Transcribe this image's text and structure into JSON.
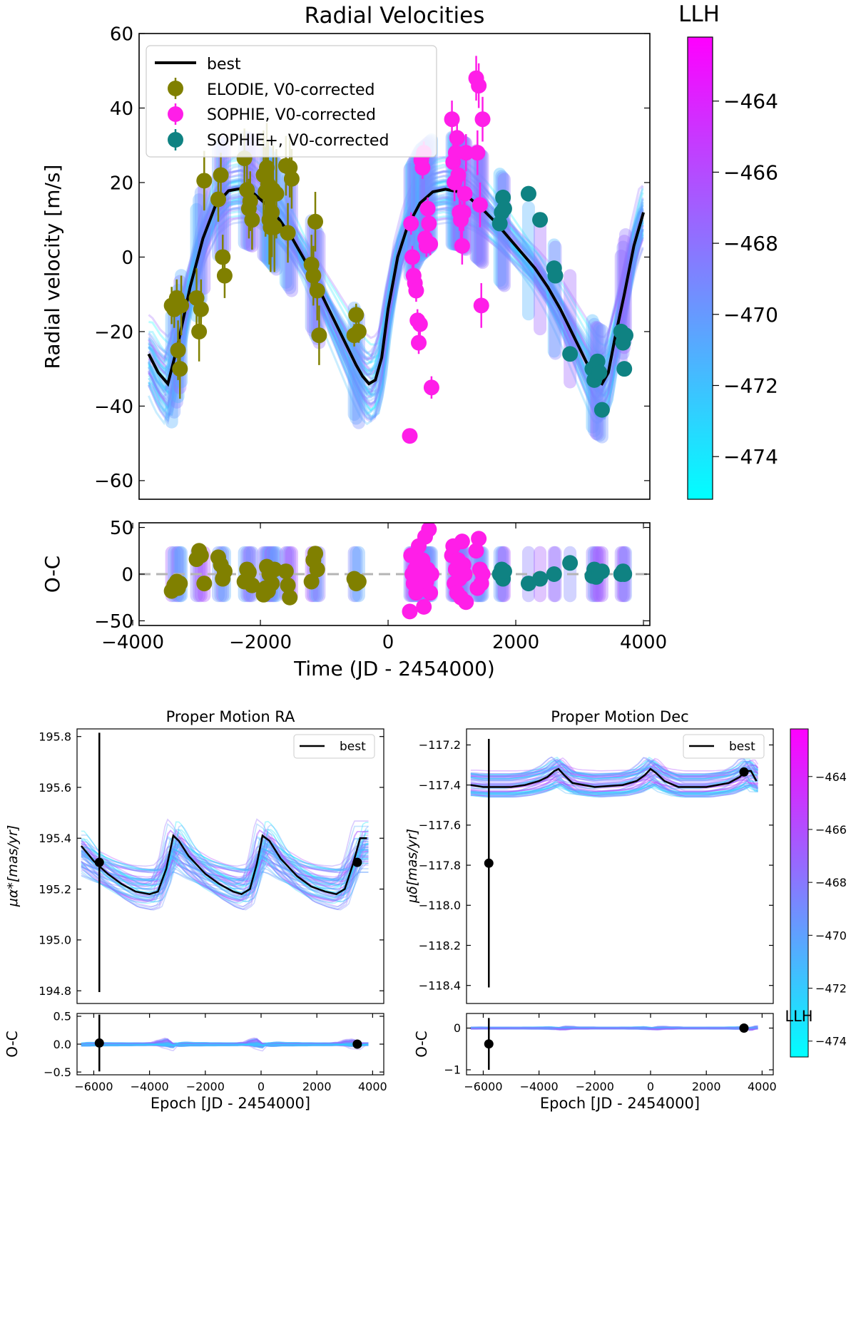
{
  "colors": {
    "elodie": "#808000",
    "sophie": "#ff1ee8",
    "sophie_plus": "#0f8282",
    "best": "#000000",
    "cmap_low": "#00ffff",
    "cmap_high": "#ff00ff",
    "zero_line": "#b4b4b4"
  },
  "chart_data": [
    {
      "id": "rv",
      "type": "scatter",
      "title": "Radial Velocities",
      "xlabel": "Time (JD - 2454000)",
      "ylabel": "Radial velocity [m/s]",
      "xlim": [
        -3900,
        4100
      ],
      "ylim": [
        -65,
        60
      ],
      "xticks": [
        "-4000",
        "-2000",
        "0",
        "2000",
        "4000"
      ],
      "xtick_values": [
        -4000,
        -2000,
        0,
        2000,
        4000
      ],
      "yticks": [
        "60",
        "40",
        "20",
        "0",
        "-20",
        "-40",
        "-60"
      ],
      "ytick_values": [
        60,
        40,
        20,
        0,
        -20,
        -40,
        -60
      ],
      "legend": [
        "best",
        "ELODIE, V0-corrected",
        "SOPHIE, V0-corrected",
        "SOPHIE+, V0-corrected"
      ],
      "best_fit": {
        "name": "best",
        "x": [
          -3750,
          -3600,
          -3450,
          -3300,
          -3100,
          -2900,
          -2700,
          -2500,
          -2300,
          -2100,
          -1900,
          -1700,
          -1500,
          -1300,
          -1100,
          -900,
          -700,
          -500,
          -400,
          -300,
          -200,
          -100,
          0,
          150,
          300,
          500,
          700,
          900,
          1100,
          1300,
          1500,
          1700,
          1900,
          2100,
          2300,
          2500,
          2700,
          2900,
          3100,
          3250,
          3350,
          3450,
          3550,
          3700,
          3850,
          4000
        ],
        "y": [
          -26,
          -31,
          -34,
          -24,
          -8,
          5,
          14,
          17.8,
          18.4,
          17,
          14,
          10,
          5,
          -1,
          -8,
          -15,
          -22,
          -29,
          -32,
          -34,
          -33,
          -27,
          -14,
          0,
          8,
          14.5,
          17.5,
          18.2,
          17.5,
          15.5,
          12.5,
          9,
          5,
          1,
          -3,
          -8,
          -14,
          -21,
          -28,
          -33,
          -34,
          -31,
          -22,
          -10,
          3,
          12
        ]
      },
      "series": [
        {
          "name": "ELODIE, V0-corrected",
          "x": [
            -3390,
            -3350,
            -3310,
            -3290,
            -3260,
            -3240,
            -3000,
            -2960,
            -2930,
            -2880,
            -2660,
            -2620,
            -2590,
            -2560,
            -2250,
            -2210,
            -2180,
            -2160,
            -2130,
            -1950,
            -1920,
            -1900,
            -1880,
            -1860,
            -1840,
            -1820,
            -1800,
            -1780,
            -1750,
            -1600,
            -1570,
            -1540,
            -1510,
            -1200,
            -1170,
            -1140,
            -1110,
            -1080,
            -530,
            -500,
            -460
          ],
          "y": [
            -13,
            -14,
            -11,
            -25,
            -30,
            -13,
            -11,
            -20,
            -14,
            20.5,
            15.5,
            22,
            0,
            -5,
            26.5,
            18,
            13,
            15,
            10,
            22,
            17.5,
            24,
            19.5,
            10,
            8,
            12,
            18,
            8,
            17,
            24.5,
            6.5,
            24,
            21,
            -2,
            -5,
            9.5,
            -9,
            -21,
            -21,
            -15.5,
            -20
          ],
          "err": [
            5,
            5,
            5,
            8,
            8,
            8,
            8,
            8,
            8,
            8,
            6,
            6,
            6,
            6,
            8,
            8,
            8,
            8,
            8,
            12,
            12,
            12,
            12,
            12,
            12,
            12,
            12,
            12,
            12,
            8,
            8,
            8,
            8,
            8,
            8,
            8,
            8,
            8,
            3,
            3,
            3
          ]
        },
        {
          "name": "SOPHIE, V0-corrected",
          "x": [
            340,
            360,
            380,
            400,
            420,
            440,
            460,
            480,
            500,
            520,
            540,
            560,
            580,
            600,
            620,
            640,
            660,
            680,
            1000,
            1020,
            1040,
            1060,
            1080,
            1100,
            1120,
            1140,
            1160,
            1180,
            1200,
            1220,
            1380,
            1400,
            1420,
            1440,
            1460,
            1480
          ],
          "y": [
            -48,
            9,
            0,
            -5,
            -7,
            -9,
            -17,
            -23,
            -18,
            26,
            24,
            28,
            5,
            3,
            13,
            9,
            3.5,
            -35,
            37,
            25.5,
            20,
            28,
            32,
            22,
            12,
            10,
            3,
            12,
            17,
            28,
            48,
            28,
            46,
            14,
            -13,
            37
          ],
          "err": [
            2,
            3,
            3,
            3,
            3,
            3,
            3,
            3,
            3,
            3,
            3,
            3,
            3,
            3,
            3,
            3,
            3,
            3,
            5,
            5,
            5,
            5,
            5,
            5,
            5,
            5,
            5,
            5,
            5,
            5,
            6,
            6,
            6,
            6,
            6,
            6
          ]
        },
        {
          "name": "SOPHIE+, V0-corrected",
          "x": [
            1750,
            1780,
            1800,
            1820,
            2200,
            2380,
            2600,
            2620,
            2850,
            3200,
            3230,
            3260,
            3280,
            3310,
            3350,
            3650,
            3680,
            3700,
            3720
          ],
          "y": [
            9,
            12,
            16,
            13,
            17,
            10,
            -3,
            -5,
            -26,
            -30,
            -33,
            -29,
            -28,
            -31,
            -41,
            -20,
            -23,
            -30,
            -21
          ],
          "err": [
            2,
            2,
            2,
            2,
            2,
            2,
            2,
            2,
            2,
            2,
            2,
            2,
            2,
            2,
            2,
            2,
            2,
            2,
            2
          ]
        }
      ]
    },
    {
      "id": "rv_oc",
      "type": "scatter",
      "title": "",
      "xlabel": "Time (JD - 2454000)",
      "ylabel": "O-C",
      "xlim": [
        -3900,
        4100
      ],
      "ylim": [
        -55,
        55
      ],
      "xticks": [
        "-4000",
        "-2000",
        "0",
        "2000",
        "4000"
      ],
      "xtick_values": [
        -4000,
        -2000,
        0,
        2000,
        4000
      ],
      "yticks": [
        "50",
        "0",
        "-50"
      ],
      "ytick_values": [
        50,
        0,
        -50
      ],
      "series": [
        {
          "name": "ELODIE, V0-corrected",
          "x": [
            -3390,
            -3350,
            -3310,
            -3290,
            -3260,
            -3000,
            -2960,
            -2930,
            -2880,
            -2660,
            -2620,
            -2590,
            -2560,
            -2250,
            -2210,
            -2180,
            -2130,
            -1950,
            -1920,
            -1900,
            -1880,
            -1860,
            -1820,
            -1780,
            -1600,
            -1570,
            -1540,
            -1200,
            -1170,
            -1140,
            -1110,
            -530,
            -500,
            -460
          ],
          "y": [
            -18,
            -12,
            -8,
            -15,
            -10,
            16,
            25,
            20,
            -10,
            18,
            10,
            -5,
            3,
            -8,
            5,
            2,
            -12,
            -22,
            -15,
            8,
            -18,
            0,
            -10,
            5,
            3,
            -12,
            -25,
            -8,
            15,
            22,
            5,
            -5,
            -10,
            -8
          ]
        },
        {
          "name": "SOPHIE, V0-corrected",
          "x": [
            340,
            360,
            380,
            400,
            420,
            440,
            460,
            480,
            500,
            520,
            540,
            560,
            580,
            600,
            620,
            640,
            660,
            680,
            1000,
            1020,
            1040,
            1060,
            1080,
            1100,
            1120,
            1140,
            1160,
            1180,
            1200,
            1220,
            1380,
            1400,
            1420,
            1440,
            1460,
            1480
          ],
          "y": [
            -40,
            20,
            0,
            -10,
            5,
            -20,
            10,
            30,
            -15,
            0,
            15,
            -35,
            40,
            -8,
            5,
            48,
            -20,
            0,
            20,
            30,
            -10,
            5,
            -20,
            15,
            -5,
            -25,
            35,
            10,
            0,
            -30,
            25,
            -15,
            38,
            5,
            -10,
            0
          ],
          "err": []
        },
        {
          "name": "SOPHIE+, V0-corrected",
          "x": [
            1750,
            1780,
            1800,
            1820,
            2200,
            2380,
            2600,
            2850,
            3200,
            3230,
            3260,
            3280,
            3310,
            3350,
            3650,
            3680,
            3700
          ],
          "y": [
            0,
            5,
            -5,
            3,
            -10,
            -5,
            0,
            12,
            -2,
            5,
            -3,
            0,
            2,
            3,
            0,
            3,
            0
          ]
        }
      ]
    },
    {
      "id": "pm_ra",
      "type": "scatter",
      "title": "Proper Motion RA",
      "xlabel": "Epoch [JD - 2454000]",
      "ylabel": "μα*[mas/yr]",
      "xlim": [
        -6600,
        4400
      ],
      "ylim": [
        194.75,
        195.83
      ],
      "xticks": [
        "-6000",
        "-4000",
        "-2000",
        "0",
        "2000",
        "4000"
      ],
      "xtick_values": [
        -6000,
        -4000,
        -2000,
        0,
        2000,
        4000
      ],
      "yticks": [
        "195.8",
        "195.6",
        "195.4",
        "195.2",
        "195.0",
        "194.8"
      ],
      "ytick_values": [
        195.8,
        195.6,
        195.4,
        195.2,
        195.0,
        194.8
      ],
      "legend": [
        "best"
      ],
      "best_fit": {
        "name": "best",
        "x": [
          -6450,
          -6000,
          -5500,
          -5000,
          -4500,
          -4000,
          -3700,
          -3400,
          -3150,
          -2950,
          -2600,
          -2000,
          -1500,
          -1000,
          -700,
          -400,
          -150,
          50,
          300,
          700,
          1300,
          1800,
          2300,
          2700,
          3000,
          3300,
          3550,
          3800
        ],
        "y": [
          195.37,
          195.31,
          195.26,
          195.22,
          195.19,
          195.18,
          195.19,
          195.28,
          195.41,
          195.39,
          195.33,
          195.26,
          195.22,
          195.19,
          195.18,
          195.2,
          195.3,
          195.41,
          195.39,
          195.32,
          195.25,
          195.21,
          195.19,
          195.18,
          195.2,
          195.3,
          195.4,
          195.4
        ]
      },
      "points": {
        "x": [
          -5800,
          3450
        ],
        "y": [
          195.305,
          195.305
        ],
        "err": [
          0.51,
          0
        ]
      }
    },
    {
      "id": "pm_ra_oc",
      "type": "scatter",
      "title": "",
      "xlabel": "Epoch [JD - 2454000]",
      "ylabel": "O-C",
      "xlim": [
        -6600,
        4400
      ],
      "ylim": [
        -0.55,
        0.55
      ],
      "xticks": [
        "-6000",
        "-4000",
        "-2000",
        "0",
        "2000",
        "4000"
      ],
      "xtick_values": [
        -6000,
        -4000,
        -2000,
        0,
        2000,
        4000
      ],
      "yticks": [
        "0.5",
        "0.0",
        "-0.5"
      ],
      "ytick_values": [
        0.5,
        0.0,
        -0.5
      ],
      "points": {
        "x": [
          -5800,
          3450
        ],
        "y": [
          0.02,
          0.0
        ],
        "err": [
          0.51,
          0
        ]
      }
    },
    {
      "id": "pm_dec",
      "type": "scatter",
      "title": "Proper Motion Dec",
      "xlabel": "Epoch [JD - 2454000]",
      "ylabel": "μδ[mas/yr]",
      "xlim": [
        -6600,
        4400
      ],
      "ylim": [
        -118.49,
        -117.12
      ],
      "xticks": [
        "-6000",
        "-4000",
        "-2000",
        "0",
        "2000",
        "4000"
      ],
      "xtick_values": [
        -6000,
        -4000,
        -2000,
        0,
        2000,
        4000
      ],
      "yticks": [
        "-117.2",
        "-117.4",
        "-117.6",
        "-117.8",
        "-118.0",
        "-118.2",
        "-118.4"
      ],
      "ytick_values": [
        -117.2,
        -117.4,
        -117.6,
        -117.8,
        -118.0,
        -118.2,
        -118.4
      ],
      "legend": [
        "best"
      ],
      "best_fit": {
        "name": "best",
        "x": [
          -6450,
          -6000,
          -5500,
          -5000,
          -4500,
          -4000,
          -3700,
          -3450,
          -3300,
          -3100,
          -2800,
          -2000,
          -1000,
          -500,
          -200,
          0,
          200,
          500,
          1000,
          2000,
          2800,
          3200,
          3400,
          3600,
          3800
        ],
        "y": [
          -117.4,
          -117.41,
          -117.41,
          -117.41,
          -117.4,
          -117.38,
          -117.36,
          -117.33,
          -117.32,
          -117.35,
          -117.39,
          -117.41,
          -117.4,
          -117.38,
          -117.35,
          -117.32,
          -117.34,
          -117.38,
          -117.41,
          -117.41,
          -117.39,
          -117.36,
          -117.33,
          -117.33,
          -117.38
        ]
      },
      "points": {
        "x": [
          -5800,
          3350
        ],
        "y": [
          -117.79,
          -117.335
        ],
        "err": [
          0.62,
          0
        ]
      }
    },
    {
      "id": "pm_dec_oc",
      "type": "scatter",
      "title": "",
      "xlabel": "Epoch [JD - 2454000]",
      "ylabel": "O-C",
      "xlim": [
        -6600,
        4400
      ],
      "ylim": [
        -1.12,
        0.35
      ],
      "xticks": [
        "-6000",
        "-4000",
        "-2000",
        "0",
        "2000",
        "4000"
      ],
      "xtick_values": [
        -6000,
        -4000,
        -2000,
        0,
        2000,
        4000
      ],
      "yticks": [
        "0",
        "-1"
      ],
      "ytick_values": [
        0,
        -1
      ],
      "points": {
        "x": [
          -5800,
          3350
        ],
        "y": [
          -0.38,
          0.0
        ],
        "err": [
          0.62,
          0
        ]
      }
    },
    {
      "id": "colorbar_top",
      "type": "heatmap",
      "title": "LLH",
      "ylim": [
        -475.2,
        -462.2
      ],
      "yticks": [
        "−464",
        "−466",
        "−468",
        "−470",
        "−472",
        "−474"
      ],
      "ytick_values": [
        -464,
        -466,
        -468,
        -470,
        -472,
        -474
      ]
    },
    {
      "id": "colorbar_bottom",
      "type": "heatmap",
      "title": "LLH",
      "ylim": [
        -474.6,
        -462.2
      ],
      "yticks": [
        "−464",
        "−466",
        "−468",
        "−470",
        "−472",
        "−474"
      ],
      "ytick_values": [
        -464,
        -466,
        -468,
        -470,
        -472,
        -474
      ]
    }
  ]
}
